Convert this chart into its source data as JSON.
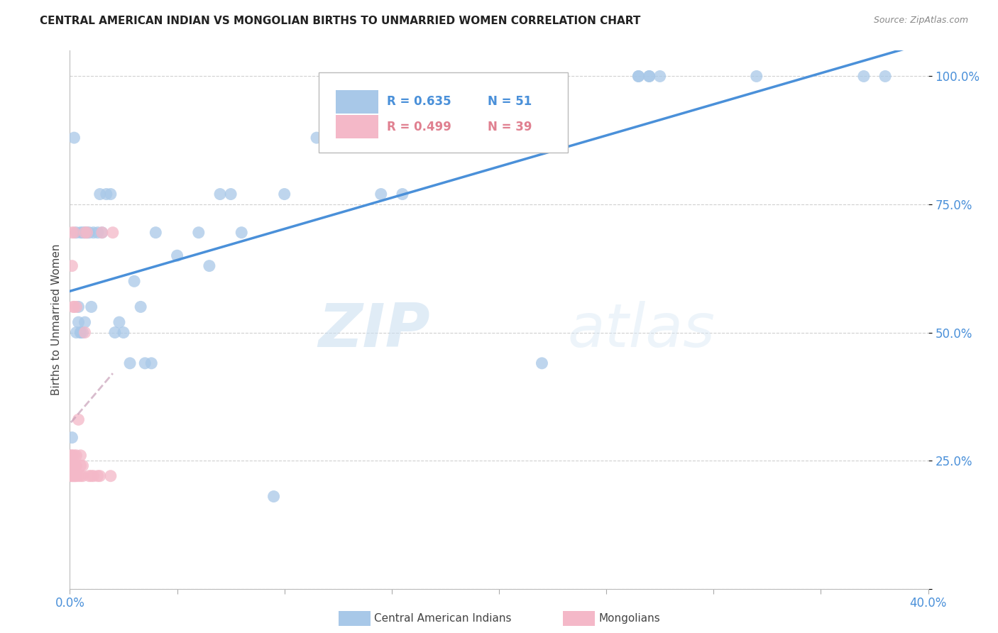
{
  "title": "CENTRAL AMERICAN INDIAN VS MONGOLIAN BIRTHS TO UNMARRIED WOMEN CORRELATION CHART",
  "source": "Source: ZipAtlas.com",
  "ylabel": "Births to Unmarried Women",
  "xlim": [
    0.0,
    0.4
  ],
  "ylim": [
    0.0,
    1.05
  ],
  "x_ticks": [
    0.0,
    0.05,
    0.1,
    0.15,
    0.2,
    0.25,
    0.3,
    0.35,
    0.4
  ],
  "y_ticks": [
    0.0,
    0.25,
    0.5,
    0.75,
    1.0
  ],
  "y_tick_labels": [
    "",
    "25.0%",
    "50.0%",
    "75.0%",
    "100.0%"
  ],
  "blue_color": "#a8c8e8",
  "pink_color": "#f4b8c8",
  "blue_line_color": "#4a90d9",
  "pink_line_color": "#c0a0b0",
  "tick_color": "#4a90d9",
  "r_blue": 0.635,
  "n_blue": 51,
  "r_pink": 0.499,
  "n_pink": 39,
  "blue_x": [
    0.001,
    0.002,
    0.003,
    0.003,
    0.004,
    0.004,
    0.005,
    0.005,
    0.005,
    0.006,
    0.006,
    0.007,
    0.007,
    0.008,
    0.009,
    0.01,
    0.011,
    0.013,
    0.014,
    0.015,
    0.017,
    0.019,
    0.021,
    0.023,
    0.025,
    0.028,
    0.03,
    0.033,
    0.035,
    0.038,
    0.04,
    0.05,
    0.06,
    0.065,
    0.07,
    0.075,
    0.08,
    0.095,
    0.1,
    0.115,
    0.145,
    0.155,
    0.22,
    0.265,
    0.27,
    0.265,
    0.27,
    0.275,
    0.32,
    0.37,
    0.38
  ],
  "blue_y": [
    0.295,
    0.88,
    0.5,
    0.695,
    0.52,
    0.55,
    0.5,
    0.695,
    0.5,
    0.5,
    0.695,
    0.52,
    0.695,
    0.695,
    0.695,
    0.55,
    0.695,
    0.695,
    0.77,
    0.695,
    0.77,
    0.77,
    0.5,
    0.52,
    0.5,
    0.44,
    0.6,
    0.55,
    0.44,
    0.44,
    0.695,
    0.65,
    0.695,
    0.63,
    0.77,
    0.77,
    0.695,
    0.18,
    0.77,
    0.88,
    0.77,
    0.77,
    0.44,
    1.0,
    1.0,
    1.0,
    1.0,
    1.0,
    1.0,
    1.0,
    1.0
  ],
  "pink_x": [
    0.0005,
    0.0005,
    0.0005,
    0.001,
    0.001,
    0.001,
    0.001,
    0.001,
    0.0015,
    0.0015,
    0.0015,
    0.002,
    0.002,
    0.002,
    0.002,
    0.0025,
    0.0025,
    0.003,
    0.003,
    0.003,
    0.003,
    0.004,
    0.004,
    0.005,
    0.005,
    0.005,
    0.006,
    0.006,
    0.007,
    0.007,
    0.008,
    0.009,
    0.01,
    0.011,
    0.013,
    0.014,
    0.015,
    0.019,
    0.02
  ],
  "pink_y": [
    0.22,
    0.24,
    0.26,
    0.63,
    0.695,
    0.22,
    0.24,
    0.26,
    0.55,
    0.22,
    0.24,
    0.695,
    0.55,
    0.22,
    0.26,
    0.22,
    0.24,
    0.55,
    0.22,
    0.24,
    0.26,
    0.33,
    0.22,
    0.22,
    0.24,
    0.26,
    0.22,
    0.24,
    0.695,
    0.5,
    0.695,
    0.22,
    0.22,
    0.22,
    0.22,
    0.22,
    0.695,
    0.22,
    0.695
  ],
  "watermark_zip": "ZIP",
  "watermark_atlas": "atlas",
  "background_color": "#ffffff",
  "grid_color": "#d0d0d0",
  "legend_box_color": "#ffffff",
  "legend_border_color": "#cccccc"
}
